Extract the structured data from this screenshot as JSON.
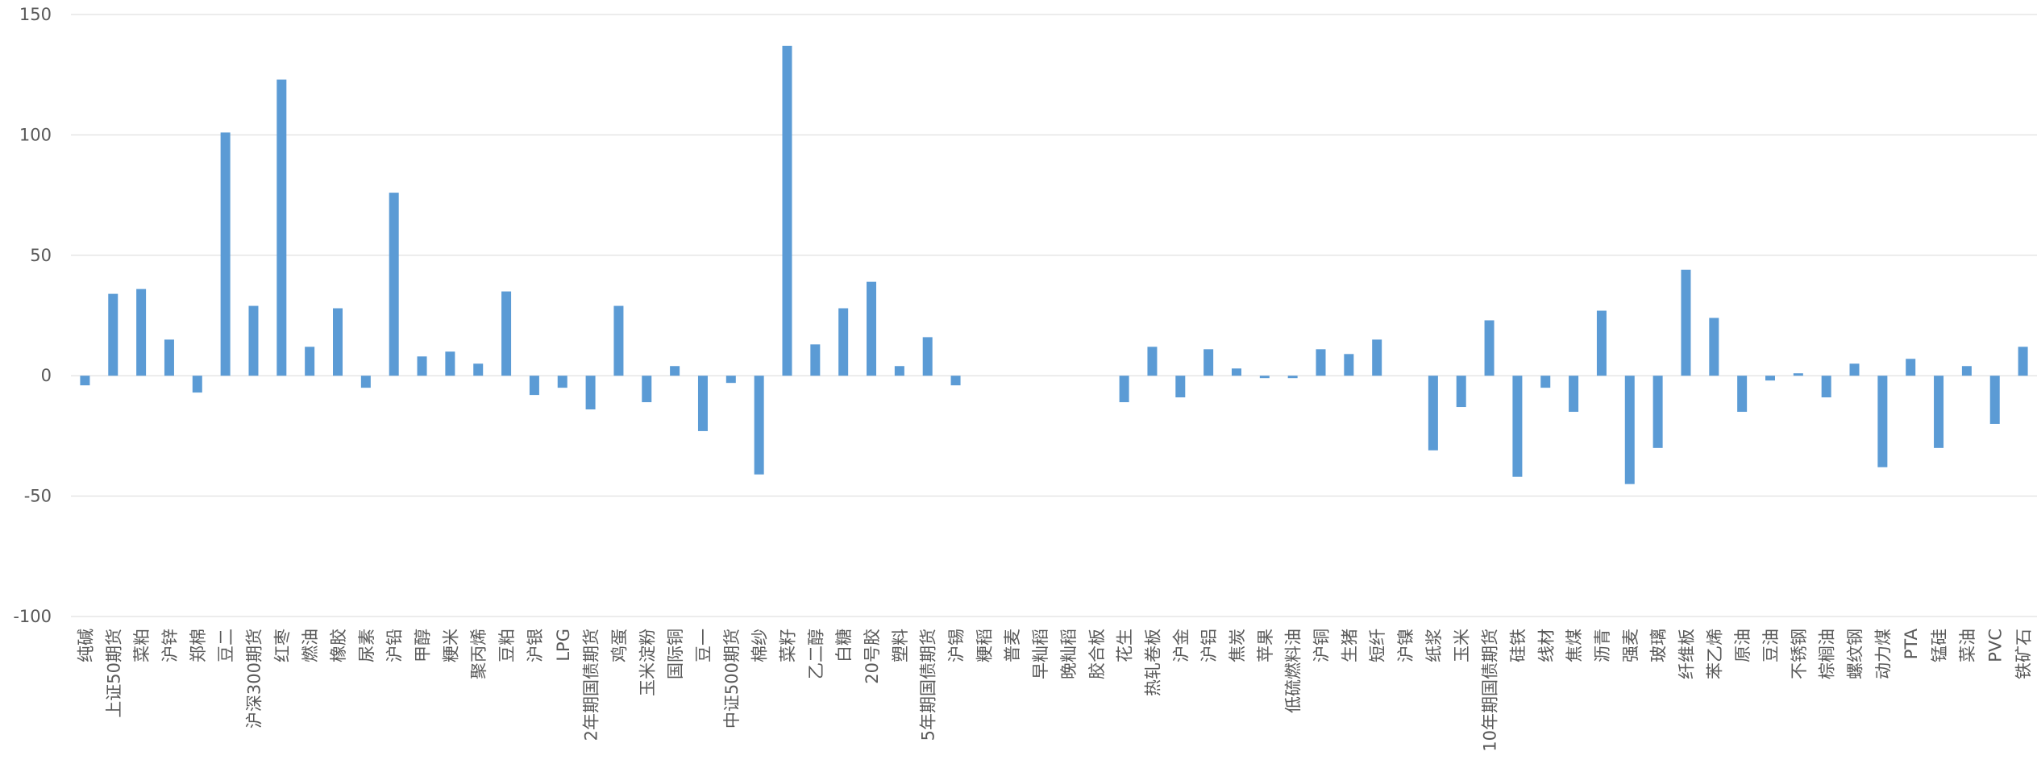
{
  "chart_data": {
    "type": "bar",
    "title": "",
    "xlabel": "",
    "ylabel": "",
    "ylim": [
      -100,
      150
    ],
    "yticks": [
      150,
      100,
      50,
      0,
      -50,
      -100
    ],
    "grid": true,
    "legend": "none",
    "bar_color": "#5b9bd5",
    "grid_color": "#d9d9d9",
    "categories": [
      "纯碱",
      "上证50期货",
      "菜粕",
      "沪锌",
      "郑棉",
      "豆二",
      "沪深300期货",
      "红枣",
      "燃油",
      "橡胶",
      "尿素",
      "沪铅",
      "甲醇",
      "粳米",
      "聚丙烯",
      "豆粕",
      "沪银",
      "LPG",
      "2年期国债期货",
      "鸡蛋",
      "玉米淀粉",
      "国际铜",
      "豆一",
      "中证500期货",
      "棉纱",
      "菜籽",
      "乙二醇",
      "白糖",
      "20号胶",
      "塑料",
      "5年期国债期货",
      "沪锡",
      "粳稻",
      "普麦",
      "早籼稻",
      "晚籼稻",
      "胶合板",
      "花生",
      "热轧卷板",
      "沪金",
      "沪铝",
      "焦炭",
      "苹果",
      "低硫燃料油",
      "沪铜",
      "生猪",
      "短纤",
      "沪镍",
      "纸浆",
      "玉米",
      "10年期国债期货",
      "硅铁",
      "线材",
      "焦煤",
      "沥青",
      "强麦",
      "玻璃",
      "纤维板",
      "苯乙烯",
      "原油",
      "豆油",
      "不锈钢",
      "棕榈油",
      "螺纹钢",
      "动力煤",
      "PTA",
      "锰硅",
      "菜油",
      "PVC",
      "铁矿石"
    ],
    "values": [
      -4,
      34,
      36,
      15,
      -7,
      101,
      29,
      123,
      12,
      28,
      -5,
      76,
      8,
      10,
      5,
      35,
      -8,
      -5,
      -14,
      29,
      -11,
      4,
      -23,
      -3,
      -41,
      137,
      13,
      28,
      39,
      4,
      16,
      -4,
      0,
      0,
      0,
      0,
      0,
      -11,
      12,
      -9,
      11,
      3,
      -1,
      -1,
      11,
      9,
      15,
      0,
      -31,
      -13,
      23,
      -42,
      -5,
      -15,
      27,
      -45,
      -30,
      44,
      24,
      -15,
      -2,
      1,
      -9,
      5,
      -38,
      7,
      -30,
      4,
      -20,
      12
    ]
  }
}
